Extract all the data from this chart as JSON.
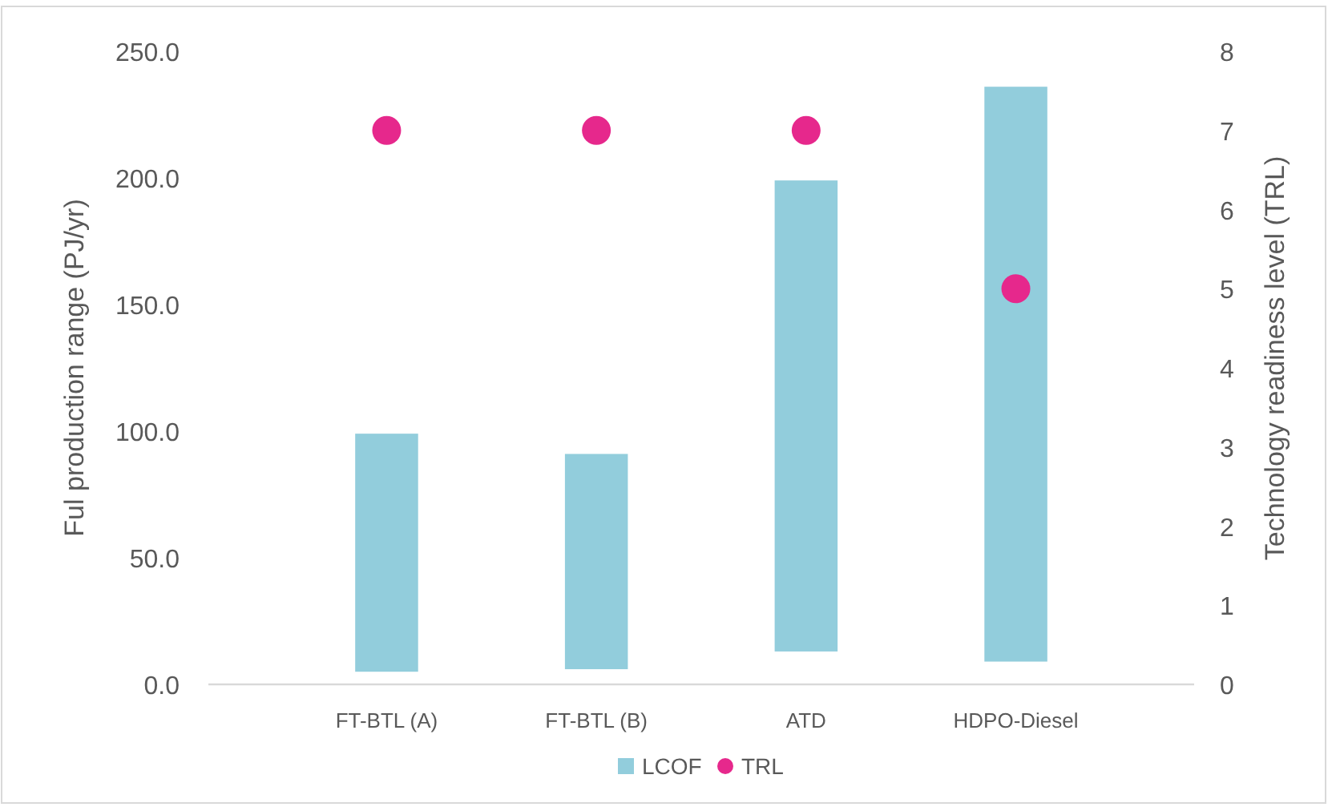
{
  "chart_data": {
    "type": "bar",
    "categories": [
      "FT-BTL (A)",
      "FT-BTL (B)",
      "ATD",
      "HDPO-Diesel"
    ],
    "ylabel": "Ful production range (PJ/yr)",
    "y2label": "Technology readiness level (TRL)",
    "series": [
      {
        "name": "LCOF",
        "color": "#92cddc",
        "base": [
          5,
          6,
          13,
          9
        ],
        "values": [
          94,
          85,
          186,
          227
        ]
      },
      {
        "name": "TRL",
        "type": "scatter",
        "axis": "y2",
        "color": "#e6288c",
        "marker": "circle",
        "x": [
          "FT-BTL (A)",
          "FT-BTL (B)",
          "ATD",
          "HDPO-Diesel"
        ],
        "values": [
          7,
          7,
          7,
          5
        ]
      }
    ],
    "ylim": [
      0,
      250
    ],
    "yticks": [
      {
        "value": 0,
        "label": "0.0"
      },
      {
        "value": 50,
        "label": "50.0"
      },
      {
        "value": 100,
        "label": "100.0"
      },
      {
        "value": 150,
        "label": "150.0"
      },
      {
        "value": 200,
        "label": "200.0"
      },
      {
        "value": 250,
        "label": "250.0"
      }
    ],
    "y2lim": [
      0,
      8
    ],
    "y2ticks": [
      0,
      1,
      2,
      3,
      4,
      5,
      6,
      7,
      8
    ],
    "grid": false,
    "legend": "bottom"
  }
}
